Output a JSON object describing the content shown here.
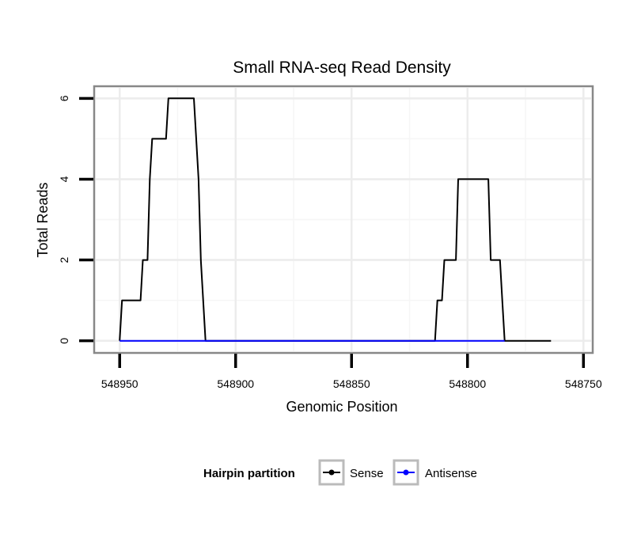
{
  "chart_data": {
    "type": "line",
    "title": "Small RNA-seq Read Density",
    "xlabel": "Genomic Position",
    "ylabel": "Total Reads",
    "x_reversed": true,
    "xlim": [
      548961,
      548746
    ],
    "ylim": [
      -0.3,
      6.3
    ],
    "x_ticks": [
      {
        "value": 548950,
        "label": "548950"
      },
      {
        "value": 548900,
        "label": "548900"
      },
      {
        "value": 548850,
        "label": "548850"
      },
      {
        "value": 548800,
        "label": "548800"
      },
      {
        "value": 548750,
        "label": "548750"
      }
    ],
    "y_ticks": [
      {
        "value": 0,
        "label": "0"
      },
      {
        "value": 2,
        "label": "2"
      },
      {
        "value": 4,
        "label": "4"
      },
      {
        "value": 6,
        "label": "6"
      }
    ],
    "grid": true,
    "legend_title": "Hairpin partition",
    "legend_position": "bottom",
    "series": [
      {
        "name": "Sense",
        "color": "#000000",
        "points": [
          [
            548950,
            0
          ],
          [
            548949,
            1
          ],
          [
            548941,
            1
          ],
          [
            548940,
            2
          ],
          [
            548938,
            2
          ],
          [
            548937,
            4
          ],
          [
            548936,
            5
          ],
          [
            548930,
            5
          ],
          [
            548929,
            6
          ],
          [
            548918,
            6
          ],
          [
            548916,
            4
          ],
          [
            548915,
            2
          ],
          [
            548913,
            0
          ],
          [
            548814,
            0
          ],
          [
            548813,
            1
          ],
          [
            548811,
            1
          ],
          [
            548810,
            2
          ],
          [
            548805,
            2
          ],
          [
            548804,
            4
          ],
          [
            548791,
            4
          ],
          [
            548790,
            2
          ],
          [
            548786,
            2
          ],
          [
            548785,
            1
          ],
          [
            548784,
            0
          ],
          [
            548764,
            0
          ]
        ]
      },
      {
        "name": "Antisense",
        "color": "#0000ff",
        "points": [
          [
            548950,
            0
          ],
          [
            548784,
            0
          ]
        ]
      }
    ]
  }
}
